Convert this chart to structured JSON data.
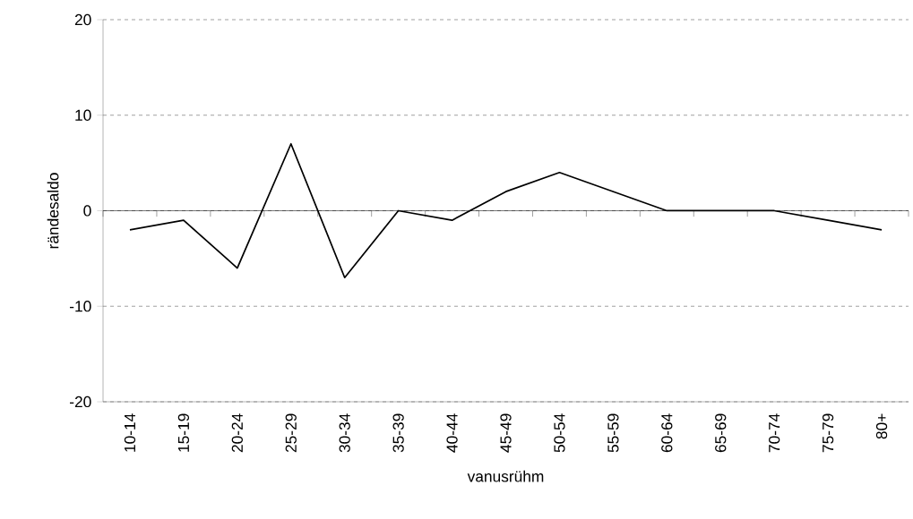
{
  "chart_data": {
    "type": "line",
    "xlabel": "vanusrühm",
    "ylabel": "rändesaldo",
    "categories": [
      "10-14",
      "15-19",
      "20-24",
      "25-29",
      "30-34",
      "35-39",
      "40-44",
      "45-49",
      "50-54",
      "55-59",
      "60-64",
      "65-69",
      "70-74",
      "75-79",
      "80+"
    ],
    "series": [
      {
        "color": "#000000",
        "values": [
          -2,
          -1,
          -6,
          7,
          -7,
          0,
          -1,
          2,
          4,
          2,
          0,
          0,
          0,
          -1,
          -2
        ]
      }
    ],
    "ylim": [
      -20,
      20
    ],
    "yticks": [
      -20,
      -10,
      0,
      10,
      20
    ],
    "grid": "y"
  }
}
